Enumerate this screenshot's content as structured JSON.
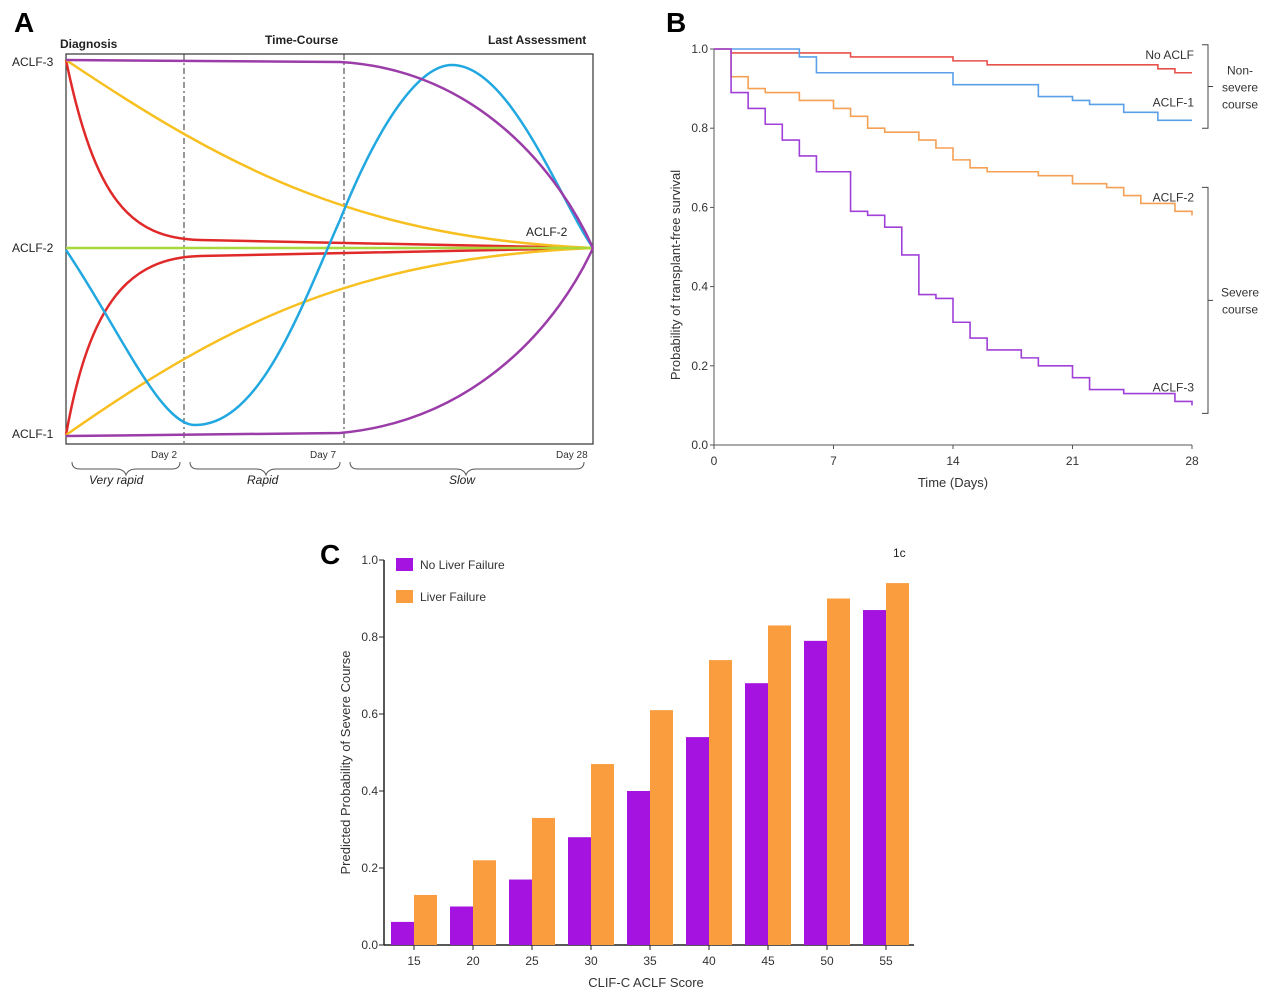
{
  "panel_a": {
    "letter": "A",
    "header_left": "Diagnosis",
    "header_mid": "Time-Course",
    "header_right": "Last Assessment",
    "ylabels": [
      "ACLF-3",
      "ACLF-2",
      "ACLF-1"
    ],
    "endpoint_label": "ACLF-2",
    "day_labels": [
      "Day 2",
      "Day 7",
      "Day 28"
    ],
    "phases": [
      "Very rapid",
      "Rapid",
      "Slow"
    ]
  },
  "chart_data": [
    {
      "id": "B",
      "type": "line",
      "letter": "B",
      "xlabel": "Time (Days)",
      "ylabel": "Probability of transplant-free survival",
      "xlim": [
        0,
        28
      ],
      "ylim": [
        0,
        1.0
      ],
      "xticks": [
        "0",
        "7",
        "14",
        "21",
        "28"
      ],
      "yticks": [
        "0.0",
        "0.2",
        "0.4",
        "0.6",
        "0.8",
        "1.0"
      ],
      "step": true,
      "series": [
        {
          "name": "No ACLF",
          "color": "#e8504a",
          "x": [
            0,
            1,
            5,
            8,
            14,
            16,
            21,
            26,
            27,
            28
          ],
          "y": [
            1.0,
            0.99,
            0.99,
            0.98,
            0.97,
            0.96,
            0.96,
            0.95,
            0.94,
            0.94
          ]
        },
        {
          "name": "ACLF-1",
          "color": "#5aa0e8",
          "x": [
            0,
            5,
            6,
            10,
            14,
            19,
            21,
            22,
            24,
            26,
            28
          ],
          "y": [
            1.0,
            0.98,
            0.94,
            0.94,
            0.91,
            0.88,
            0.87,
            0.86,
            0.84,
            0.82,
            0.82
          ]
        },
        {
          "name": "ACLF-2",
          "color": "#f5a055",
          "x": [
            0,
            1,
            2,
            3,
            5,
            7,
            8,
            9,
            10,
            12,
            13,
            14,
            15,
            16,
            19,
            21,
            23,
            24,
            25,
            27,
            28
          ],
          "y": [
            1.0,
            0.93,
            0.9,
            0.89,
            0.87,
            0.85,
            0.83,
            0.8,
            0.79,
            0.77,
            0.75,
            0.72,
            0.7,
            0.69,
            0.68,
            0.66,
            0.65,
            0.63,
            0.61,
            0.59,
            0.58
          ]
        },
        {
          "name": "ACLF-3",
          "color": "#a040d8",
          "x": [
            0,
            1,
            2,
            3,
            4,
            5,
            6,
            8,
            9,
            10,
            11,
            12,
            13,
            14,
            15,
            16,
            18,
            19,
            21,
            22,
            24,
            27,
            28
          ],
          "y": [
            1.0,
            0.89,
            0.85,
            0.81,
            0.77,
            0.73,
            0.69,
            0.59,
            0.58,
            0.55,
            0.48,
            0.38,
            0.37,
            0.31,
            0.27,
            0.24,
            0.22,
            0.2,
            0.17,
            0.14,
            0.13,
            0.11,
            0.1
          ]
        }
      ],
      "groups": [
        {
          "label": "Non-\nsevere\ncourse",
          "from": "No ACLF",
          "to": "ACLF-1"
        },
        {
          "label": "Severe\ncourse",
          "from": "ACLF-2",
          "to": "ACLF-3"
        }
      ]
    },
    {
      "id": "C",
      "type": "bar",
      "letter": "C",
      "corner_label": "1c",
      "xlabel": "CLIF-C ACLF Score",
      "ylabel": "Predicted Probability of Severe Course",
      "ylim": [
        0,
        1.0
      ],
      "yticks": [
        "0.0",
        "0.2",
        "0.4",
        "0.6",
        "0.8",
        "1.0"
      ],
      "categories": [
        "15",
        "20",
        "25",
        "30",
        "35",
        "40",
        "45",
        "50",
        "55"
      ],
      "series": [
        {
          "name": "No Liver Failure",
          "color": "#a513e0",
          "values": [
            0.06,
            0.1,
            0.17,
            0.28,
            0.4,
            0.54,
            0.68,
            0.79,
            0.87
          ]
        },
        {
          "name": "Liver Failure",
          "color": "#f99d3e",
          "values": [
            0.13,
            0.22,
            0.33,
            0.47,
            0.61,
            0.74,
            0.83,
            0.9,
            0.94
          ]
        }
      ]
    }
  ]
}
